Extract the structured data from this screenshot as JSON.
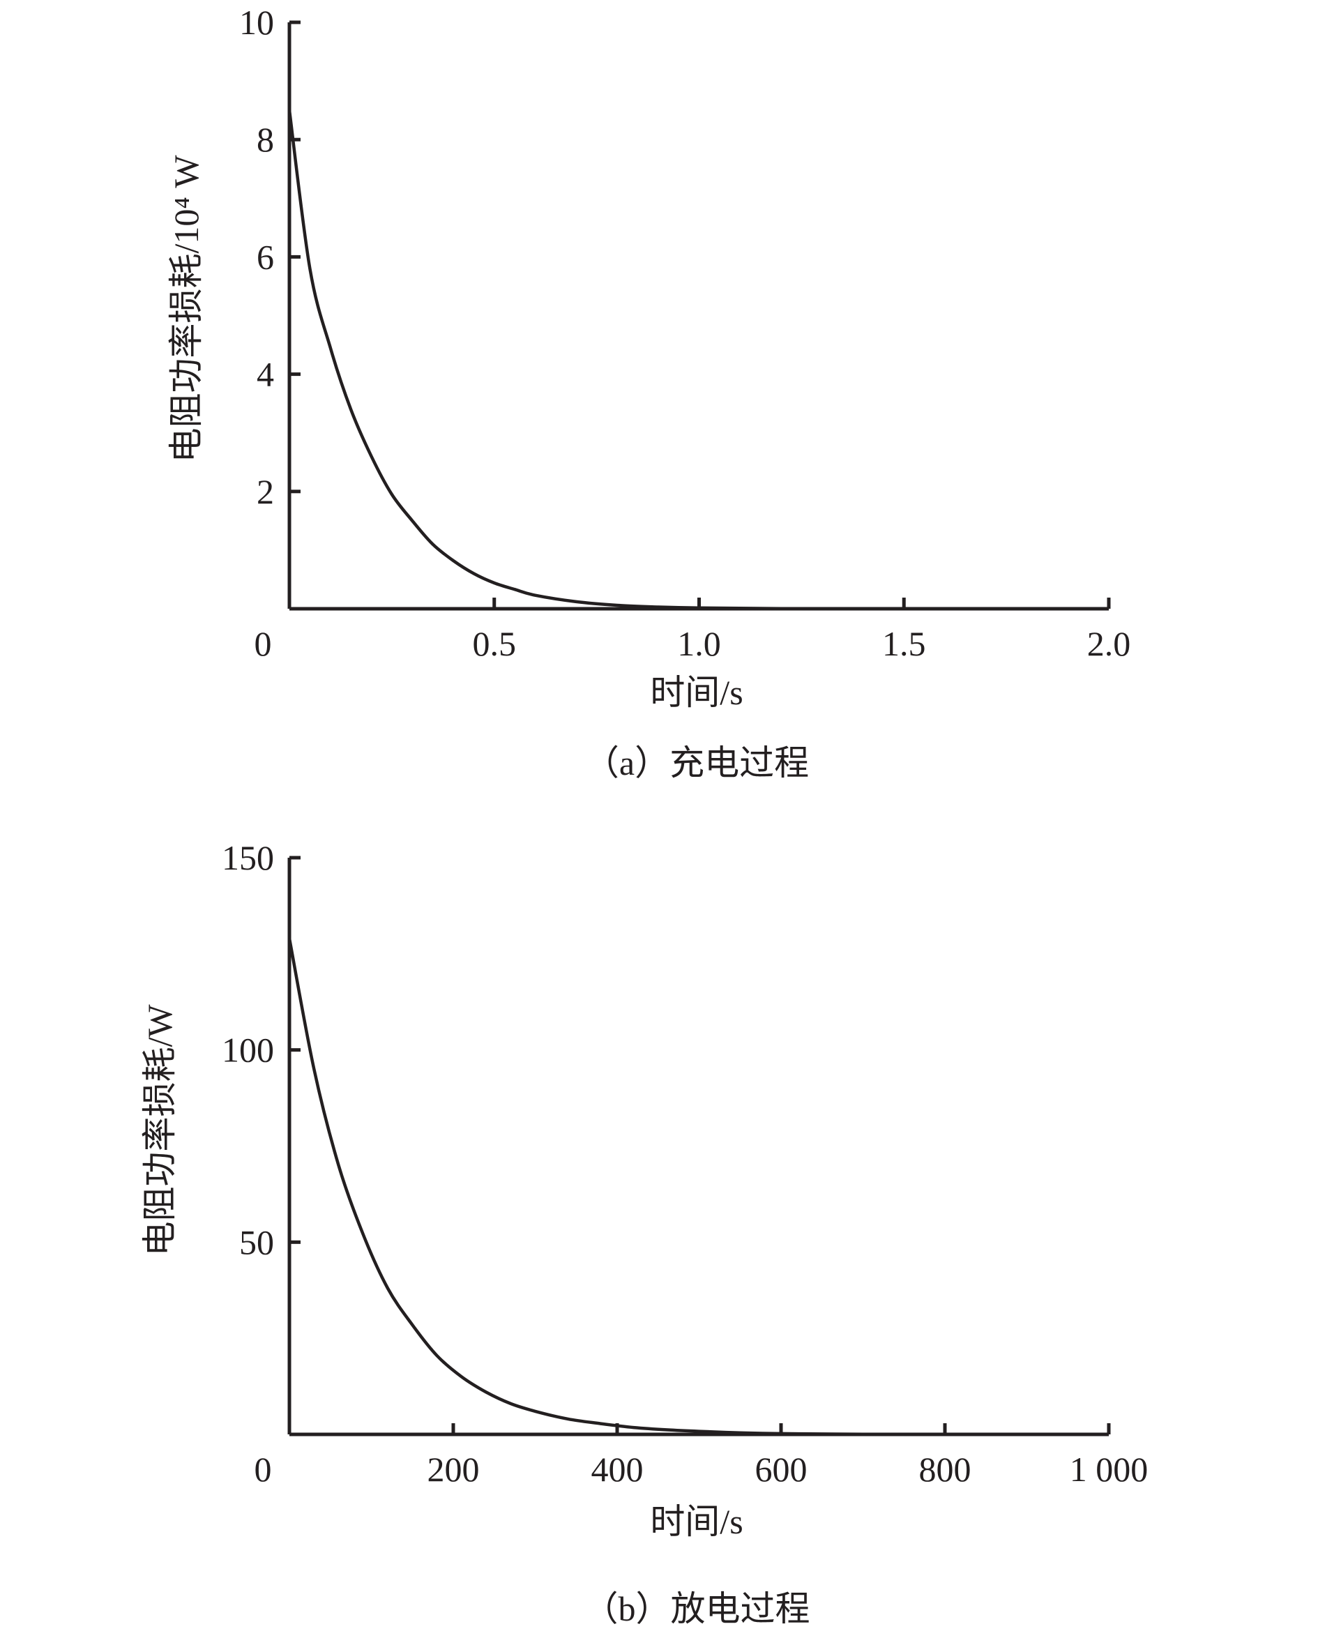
{
  "chart_data": [
    {
      "type": "line",
      "caption": "（a）充电过程",
      "xlabel": "时间/s",
      "ylabel": "电阻功率损耗/10⁴ W",
      "xlim": [
        0,
        2.0
      ],
      "ylim": [
        0,
        10
      ],
      "x_ticks": [
        0,
        0.5,
        1.0,
        1.5,
        2.0
      ],
      "x_tick_labels": [
        "0",
        "0.5",
        "1.0",
        "1.5",
        "2.0"
      ],
      "y_ticks": [
        2,
        4,
        6,
        8,
        10
      ],
      "y_tick_labels": [
        "2",
        "4",
        "6",
        "8",
        "10"
      ],
      "series": [
        {
          "x": [
            0,
            0.05,
            0.1,
            0.15,
            0.2,
            0.25,
            0.3,
            0.35,
            0.4,
            0.45,
            0.5,
            0.55,
            0.6,
            0.7,
            0.8,
            0.9,
            1.0,
            1.2,
            1.5,
            2.0
          ],
          "y": [
            8.5,
            5.8,
            4.45,
            3.4,
            2.6,
            1.95,
            1.5,
            1.1,
            0.82,
            0.6,
            0.44,
            0.33,
            0.23,
            0.12,
            0.06,
            0.03,
            0.015,
            0.004,
            0,
            0
          ]
        }
      ],
      "grid": false,
      "legend": false
    },
    {
      "type": "line",
      "caption": "（b）放电过程",
      "xlabel": "时间/s",
      "ylabel": "电阻功率损耗/W",
      "xlim": [
        0,
        1000
      ],
      "ylim": [
        0,
        150
      ],
      "x_ticks": [
        0,
        200,
        400,
        600,
        800,
        1000
      ],
      "x_tick_labels": [
        "0",
        "200",
        "400",
        "600",
        "800",
        "1 000"
      ],
      "y_ticks": [
        50,
        100,
        150
      ],
      "y_tick_labels": [
        "50",
        "100",
        "150"
      ],
      "series": [
        {
          "x": [
            0,
            30,
            60,
            90,
            120,
            150,
            180,
            210,
            240,
            270,
            300,
            340,
            380,
            420,
            460,
            500,
            550,
            600,
            700,
            800,
            1000
          ],
          "y": [
            129,
            95,
            70,
            52,
            38,
            28.5,
            20.5,
            15,
            11,
            8,
            6,
            4,
            2.8,
            1.8,
            1.2,
            0.8,
            0.4,
            0.2,
            0.05,
            0,
            0
          ]
        }
      ],
      "grid": false,
      "legend": false
    }
  ]
}
